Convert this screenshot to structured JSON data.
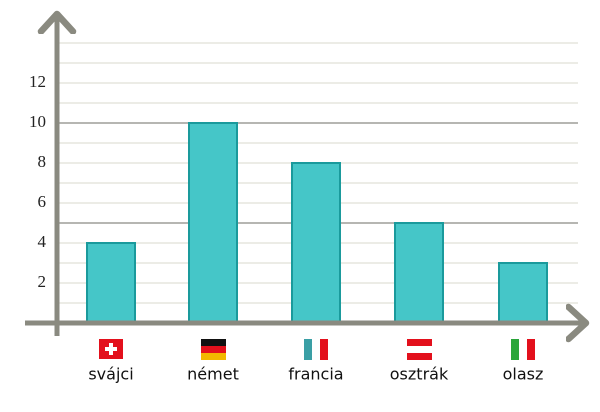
{
  "chart_data": {
    "type": "bar",
    "categories": [
      "svájci",
      "német",
      "francia",
      "osztrák",
      "olasz"
    ],
    "values": [
      4,
      10,
      8,
      5,
      3
    ],
    "color": "#45c6c8",
    "edge_color": "#1a9a9c",
    "ylim": [
      0,
      14
    ],
    "yticks": [
      2,
      4,
      6,
      8,
      10,
      12
    ],
    "gridlines": [
      1,
      2,
      3,
      4,
      6,
      7,
      8,
      9,
      11,
      12,
      13,
      14
    ],
    "dark_gridlines": [
      5,
      10
    ],
    "grid": true
  }
}
